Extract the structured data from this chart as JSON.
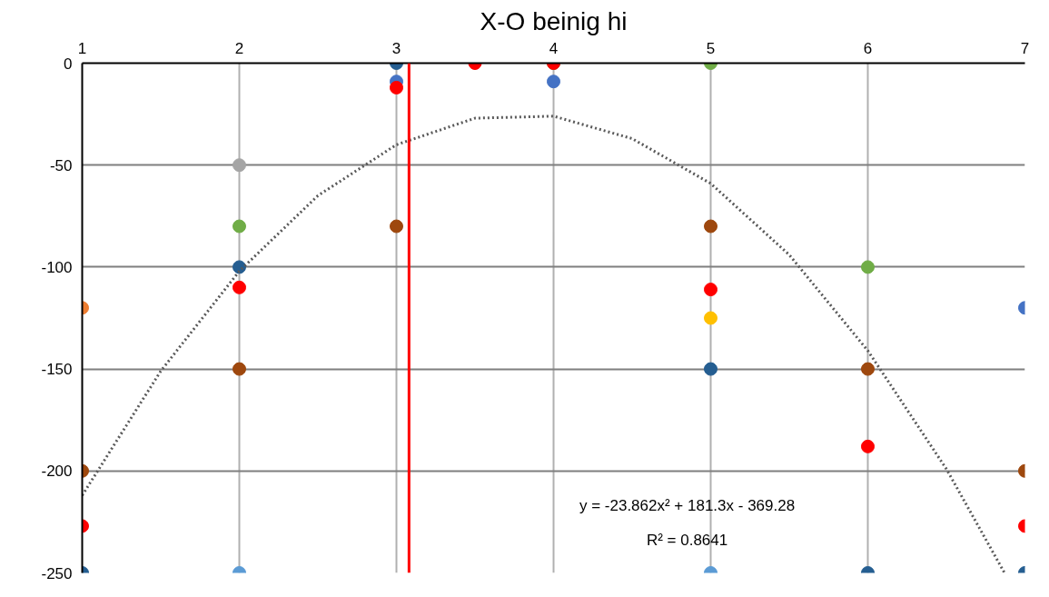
{
  "chart_data": {
    "type": "scatter",
    "title": "X-O beinig hi",
    "xlim": [
      1,
      7
    ],
    "xticks": [
      1,
      2,
      3,
      4,
      5,
      6,
      7
    ],
    "ylim": [
      -250,
      0
    ],
    "yticks": [
      -250,
      -200,
      -150,
      -100,
      -50,
      0
    ],
    "grid": true,
    "marker": "circle",
    "series": [
      {
        "x": [
          1,
          1,
          1,
          1,
          2,
          2,
          2,
          2,
          2,
          2,
          3,
          3,
          3,
          3,
          3.5,
          4,
          4,
          4,
          5,
          5,
          5,
          5,
          5,
          5,
          6,
          6,
          6,
          6,
          7,
          7,
          7,
          7
        ],
        "values": [
          -120,
          -200,
          -227,
          -250,
          -50,
          -80,
          -100,
          -110,
          -150,
          -250,
          0,
          -9,
          -12,
          -80,
          0,
          0,
          0,
          -9,
          0,
          -80,
          -111,
          -125,
          -150,
          -250,
          -100,
          -150,
          -188,
          -250,
          -120,
          -200,
          -227,
          -250
        ],
        "colors": [
          "#ed7d31",
          "#9e480e",
          "#ff0000",
          "#255e91",
          "#a5a5a5",
          "#70ad47",
          "#255e91",
          "#ff0000",
          "#9e480e",
          "#5b9bd5",
          "#255e91",
          "#4472c4",
          "#ff0000",
          "#9e480e",
          "#ff0000",
          "#70ad47",
          "#ff0000",
          "#4472c4",
          "#70ad47",
          "#9e480e",
          "#ff0000",
          "#ffc000",
          "#255e91",
          "#5b9bd5",
          "#70ad47",
          "#9e480e",
          "#ff0000",
          "#255e91",
          "#4472c4",
          "#9e480e",
          "#ff0000",
          "#255e91"
        ]
      },
      {
        "type": "line",
        "marker": "none",
        "line_style": "dotted",
        "color": "#595959",
        "x": [
          1,
          1.5,
          2,
          2.5,
          3,
          3.5,
          4,
          4.5,
          5,
          5.5,
          6,
          6.5,
          6.87
        ],
        "values": [
          -212,
          -151,
          -102,
          -65,
          -40,
          -27,
          -26,
          -37,
          -59,
          -94,
          -141,
          -199,
          -250
        ]
      }
    ],
    "ref_lines": [
      {
        "axis": "x",
        "value": 3.08,
        "color": "#ff0000"
      }
    ],
    "annotations": [
      "y = -23.862x² + 181.3x - 369.28",
      "R² = 0.8641"
    ]
  }
}
